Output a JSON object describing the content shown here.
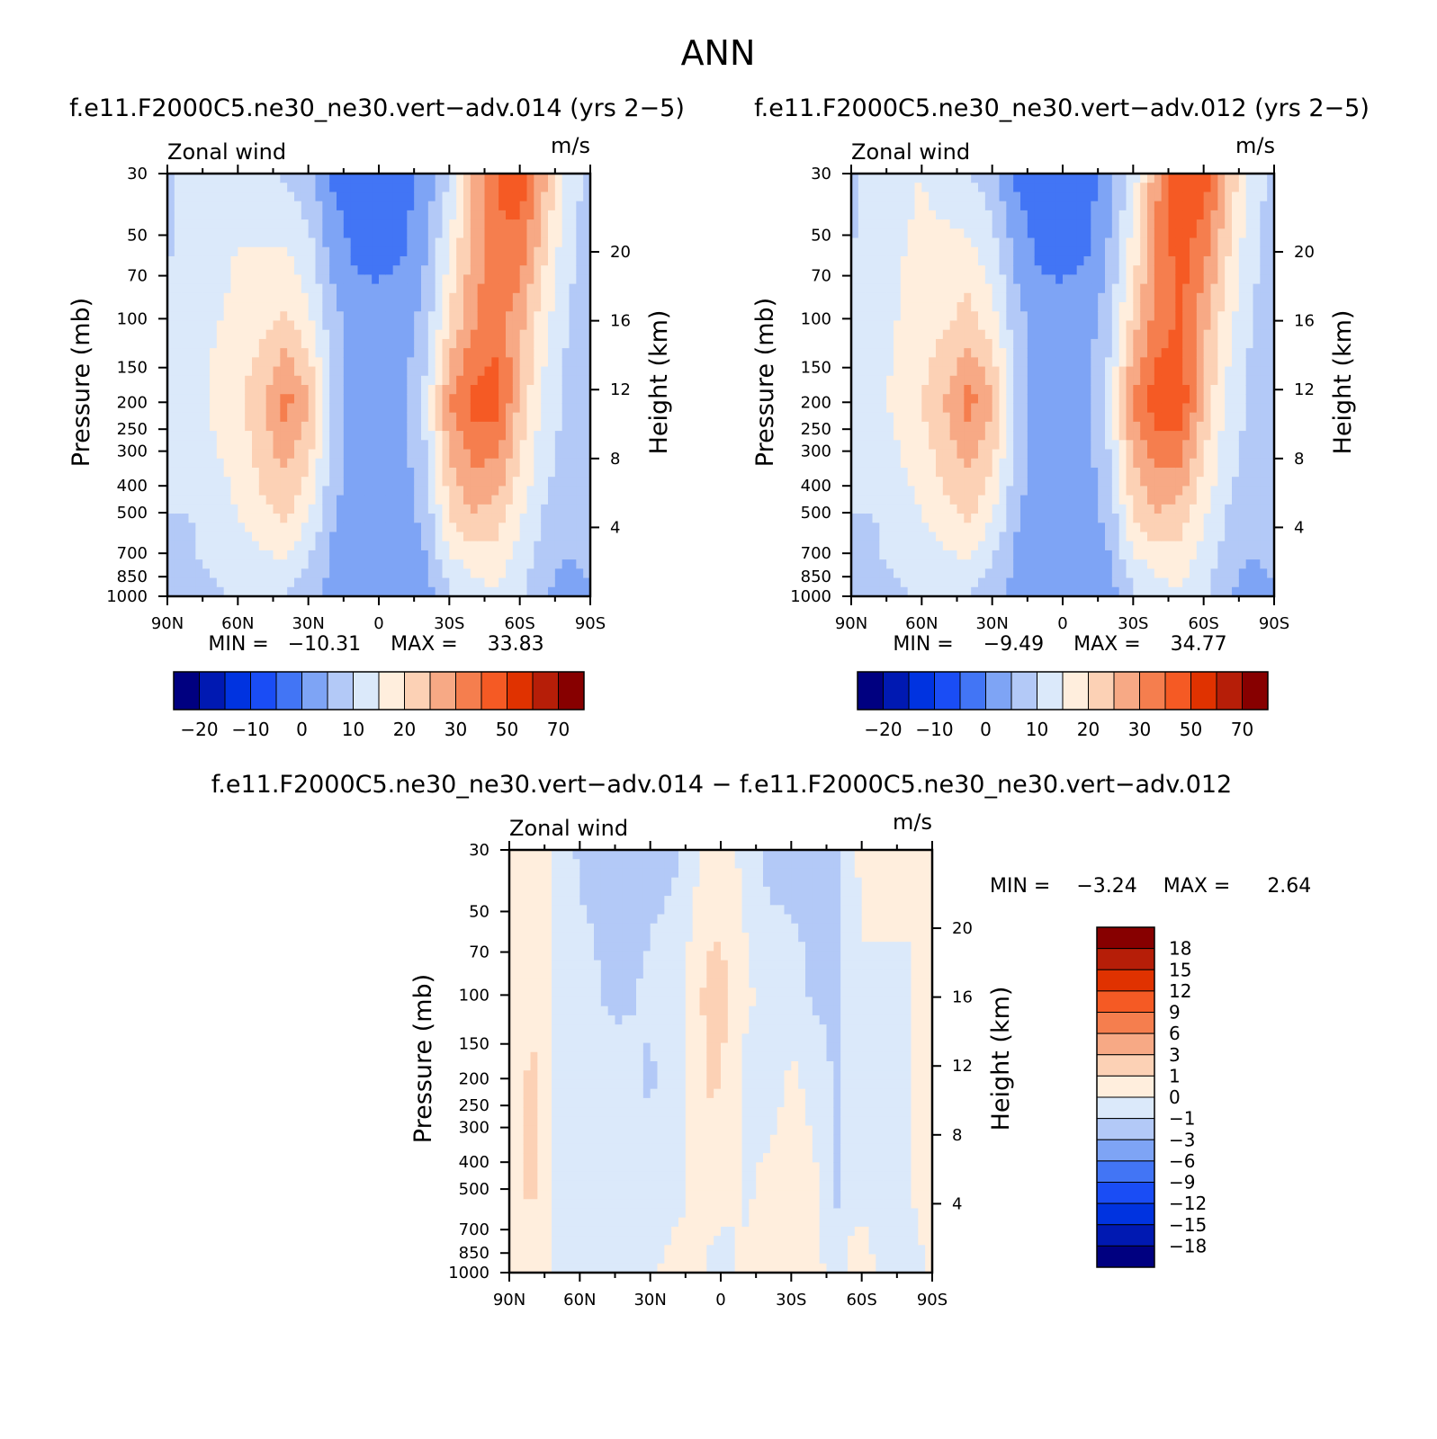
{
  "figure": {
    "title": "ANN"
  },
  "colormaps": {
    "abs": [
      "#000080",
      "#0019b2",
      "#0033e0",
      "#1a4df5",
      "#4275f5",
      "#7ea4f5",
      "#b3c9f7",
      "#dbe9fa",
      "#ffeedd",
      "#fcd1b5",
      "#f7a985",
      "#f57e4e",
      "#f55a24",
      "#e03200",
      "#b61e08",
      "#870000"
    ],
    "diff": [
      "#000080",
      "#0019b2",
      "#0033e0",
      "#1a4df5",
      "#4275f5",
      "#7ea4f5",
      "#b3c9f7",
      "#dbe9fa",
      "#ffeedd",
      "#fcd1b5",
      "#f7a985",
      "#f57e4e",
      "#f55a24",
      "#e03200",
      "#b61e08",
      "#870000"
    ]
  },
  "chart_data": [
    {
      "type": "heatmap",
      "title": "f.e11.F2000C5.ne30_ne30.vert−adv.014 (yrs 2−5)",
      "left_label": "Zonal wind",
      "right_label": "m/s",
      "xlabel": "",
      "ylabel": "Pressure (mb)",
      "y2label": "Height (km)",
      "x_ticks": [
        "90N",
        "60N",
        "30N",
        "0",
        "30S",
        "60S",
        "90S"
      ],
      "y_ticks": [
        "30",
        "50",
        "70",
        "100",
        "150",
        "200",
        "250",
        "300",
        "400",
        "500",
        "700",
        "850",
        "1000"
      ],
      "y2_ticks": [
        "20",
        "16",
        "12",
        "8",
        "4"
      ],
      "min_max": {
        "min_label": "MIN =",
        "min": "−10.31",
        "max_label": "MAX =",
        "max": "33.83"
      },
      "colorbar_labels": [
        "−20",
        "−10",
        "0",
        "10",
        "20",
        "30",
        "50",
        "70"
      ],
      "xlim": [
        90,
        -90
      ],
      "ylim": [
        1000,
        30
      ],
      "scale": "log-pressure",
      "profiles": [
        {
          "lat": 90,
          "values": {
            "30": 4,
            "100": 5,
            "200": 5,
            "500": 5,
            "1000": 4
          }
        },
        {
          "lat": 80,
          "values": {
            "30": 7,
            "100": 8,
            "200": 8,
            "500": 5,
            "1000": 4
          }
        },
        {
          "lat": 60,
          "values": {
            "30": 9,
            "100": 11,
            "200": 14,
            "500": 10,
            "1000": 5
          }
        },
        {
          "lat": 50,
          "values": {
            "30": 7,
            "100": 13,
            "200": 19,
            "500": 14,
            "1000": 5
          }
        },
        {
          "lat": 40,
          "values": {
            "30": 4,
            "100": 16,
            "200": 27,
            "500": 16,
            "1000": 5
          }
        },
        {
          "lat": 30,
          "values": {
            "30": 2,
            "100": 11,
            "200": 21,
            "500": 11,
            "1000": 1
          }
        },
        {
          "lat": 20,
          "values": {
            "30": -6,
            "100": 2,
            "200": 5,
            "500": 1,
            "1000": -2
          }
        },
        {
          "lat": 10,
          "values": {
            "30": -9,
            "100": -3,
            "200": -3,
            "500": -3,
            "1000": -3
          }
        },
        {
          "lat": 0,
          "values": {
            "30": -8,
            "100": -4,
            "200": -4,
            "500": -3,
            "1000": -3
          }
        },
        {
          "lat": -10,
          "values": {
            "30": -8,
            "100": -3,
            "200": -1,
            "500": -3,
            "1000": -3
          }
        },
        {
          "lat": -20,
          "values": {
            "30": -3,
            "100": 2,
            "200": 7,
            "500": 2,
            "1000": -2
          }
        },
        {
          "lat": -30,
          "values": {
            "30": 5,
            "100": 15,
            "200": 25,
            "500": 15,
            "1000": 4
          }
        },
        {
          "lat": -40,
          "values": {
            "30": 20,
            "100": 24,
            "200": 32,
            "500": 20,
            "1000": 7
          }
        },
        {
          "lat": -50,
          "values": {
            "30": 30,
            "100": 28,
            "200": 33,
            "500": 18,
            "1000": 9
          }
        },
        {
          "lat": -60,
          "values": {
            "30": 34,
            "100": 22,
            "200": 19,
            "500": 11,
            "1000": 6
          }
        },
        {
          "lat": -70,
          "values": {
            "30": 22,
            "100": 12,
            "200": 9,
            "500": 5,
            "1000": 0
          }
        },
        {
          "lat": -80,
          "values": {
            "30": 8,
            "100": 5,
            "200": 4,
            "500": 2,
            "1000": -2
          }
        },
        {
          "lat": -90,
          "values": {
            "30": 3,
            "100": 3,
            "200": 3,
            "500": 1,
            "1000": 0
          }
        }
      ]
    },
    {
      "type": "heatmap",
      "title": "f.e11.F2000C5.ne30_ne30.vert−adv.012 (yrs 2−5)",
      "left_label": "Zonal wind",
      "right_label": "m/s",
      "xlabel": "",
      "ylabel": "Pressure (mb)",
      "y2label": "Height (km)",
      "x_ticks": [
        "90N",
        "60N",
        "30N",
        "0",
        "30S",
        "60S",
        "90S"
      ],
      "y_ticks": [
        "30",
        "50",
        "70",
        "100",
        "150",
        "200",
        "250",
        "300",
        "400",
        "500",
        "700",
        "850",
        "1000"
      ],
      "y2_ticks": [
        "20",
        "16",
        "12",
        "8",
        "4"
      ],
      "min_max": {
        "min_label": "MIN =",
        "min": "−9.49",
        "max_label": "MAX =",
        "max": "34.77"
      },
      "colorbar_labels": [
        "−20",
        "−10",
        "0",
        "10",
        "20",
        "30",
        "50",
        "70"
      ],
      "xlim": [
        90,
        -90
      ],
      "ylim": [
        1000,
        30
      ],
      "scale": "log-pressure",
      "profiles": [
        {
          "lat": 90,
          "values": {
            "30": 4,
            "100": 5,
            "200": 5,
            "500": 5,
            "1000": 4
          }
        },
        {
          "lat": 80,
          "values": {
            "30": 8,
            "100": 8,
            "200": 8,
            "500": 5,
            "1000": 4
          }
        },
        {
          "lat": 60,
          "values": {
            "30": 10,
            "100": 12,
            "200": 15,
            "500": 10,
            "1000": 5
          }
        },
        {
          "lat": 50,
          "values": {
            "30": 8,
            "100": 14,
            "200": 20,
            "500": 14,
            "1000": 5
          }
        },
        {
          "lat": 40,
          "values": {
            "30": 5,
            "100": 17,
            "200": 27,
            "500": 16,
            "1000": 5
          }
        },
        {
          "lat": 30,
          "values": {
            "30": 2,
            "100": 12,
            "200": 21,
            "500": 11,
            "1000": 1
          }
        },
        {
          "lat": 20,
          "values": {
            "30": -6,
            "100": 2,
            "200": 5,
            "500": 1,
            "1000": -2
          }
        },
        {
          "lat": 10,
          "values": {
            "30": -9,
            "100": -3,
            "200": -3,
            "500": -3,
            "1000": -3
          }
        },
        {
          "lat": 0,
          "values": {
            "30": -8,
            "100": -4,
            "200": -4,
            "500": -3,
            "1000": -3
          }
        },
        {
          "lat": -10,
          "values": {
            "30": -8,
            "100": -3,
            "200": -1,
            "500": -3,
            "1000": -3
          }
        },
        {
          "lat": -20,
          "values": {
            "30": -2,
            "100": 3,
            "200": 8,
            "500": 2,
            "1000": -2
          }
        },
        {
          "lat": -30,
          "values": {
            "30": 7,
            "100": 17,
            "200": 26,
            "500": 15,
            "1000": 4
          }
        },
        {
          "lat": -40,
          "values": {
            "30": 24,
            "100": 27,
            "200": 33,
            "500": 20,
            "1000": 7
          }
        },
        {
          "lat": -50,
          "values": {
            "30": 34,
            "100": 31,
            "200": 34,
            "500": 18,
            "1000": 9
          }
        },
        {
          "lat": -60,
          "values": {
            "30": 33,
            "100": 22,
            "200": 19,
            "500": 11,
            "1000": 6
          }
        },
        {
          "lat": -70,
          "values": {
            "30": 20,
            "100": 12,
            "200": 9,
            "500": 5,
            "1000": 0
          }
        },
        {
          "lat": -80,
          "values": {
            "30": 8,
            "100": 5,
            "200": 4,
            "500": 2,
            "1000": -2
          }
        },
        {
          "lat": -90,
          "values": {
            "30": 3,
            "100": 3,
            "200": 3,
            "500": 1,
            "1000": 0
          }
        }
      ]
    },
    {
      "type": "heatmap",
      "title": "f.e11.F2000C5.ne30_ne30.vert−adv.014 − f.e11.F2000C5.ne30_ne30.vert−adv.012",
      "left_label": "Zonal wind",
      "right_label": "m/s",
      "xlabel": "",
      "ylabel": "Pressure (mb)",
      "y2label": "Height (km)",
      "x_ticks": [
        "90N",
        "60N",
        "30N",
        "0",
        "30S",
        "60S",
        "90S"
      ],
      "y_ticks": [
        "30",
        "50",
        "70",
        "100",
        "150",
        "200",
        "250",
        "300",
        "400",
        "500",
        "700",
        "850",
        "1000"
      ],
      "y2_ticks": [
        "20",
        "16",
        "12",
        "8",
        "4"
      ],
      "min_max": {
        "min_label": "MIN =",
        "min": "−3.24",
        "max_label": "MAX =",
        "max": "2.64"
      },
      "colorbar_labels": [
        "18",
        "15",
        "12",
        "9",
        "6",
        "3",
        "1",
        "0",
        "−1",
        "−3",
        "−6",
        "−9",
        "−12",
        "−15",
        "−18"
      ],
      "xlim": [
        90,
        -90
      ],
      "ylim": [
        1000,
        30
      ],
      "scale": "log-pressure",
      "profiles": [
        {
          "lat": 90,
          "values": {
            "30": 0.2,
            "100": 0.2,
            "200": 0.3,
            "500": 0.3,
            "1000": 0.3
          }
        },
        {
          "lat": 85,
          "values": {
            "30": 0.3,
            "100": 0.5,
            "200": 0.8,
            "500": 0.9,
            "1000": 0.3
          }
        },
        {
          "lat": 80,
          "values": {
            "30": 0.3,
            "100": 0.5,
            "200": 1.3,
            "500": 1.2,
            "1000": 0.3
          }
        },
        {
          "lat": 75,
          "values": {
            "30": 0.2,
            "100": 0.3,
            "200": 0.5,
            "500": 0.4,
            "1000": 0.2
          }
        },
        {
          "lat": 70,
          "values": {
            "30": -0.2,
            "100": -0.3,
            "200": -0.3,
            "500": -0.3,
            "1000": -0.1
          }
        },
        {
          "lat": 60,
          "values": {
            "30": -1.2,
            "100": -0.5,
            "200": -0.5,
            "500": -0.5,
            "1000": -0.3
          }
        },
        {
          "lat": 45,
          "values": {
            "30": -1.5,
            "100": -1.3,
            "200": -0.4,
            "500": -0.5,
            "1000": -0.3
          }
        },
        {
          "lat": 30,
          "values": {
            "30": -1.3,
            "100": -0.8,
            "200": -1.2,
            "500": -0.4,
            "1000": -0.2
          }
        },
        {
          "lat": 20,
          "values": {
            "30": -1.2,
            "100": -0.5,
            "200": -0.3,
            "500": -0.3,
            "1000": 0.3
          }
        },
        {
          "lat": 10,
          "values": {
            "30": -0.2,
            "100": 0.8,
            "200": 0.5,
            "500": 0.2,
            "1000": 0.1
          }
        },
        {
          "lat": 5,
          "values": {
            "30": 0.2,
            "100": 1.3,
            "200": 1.2,
            "500": 0.3,
            "1000": -0.1
          }
        },
        {
          "lat": 0,
          "values": {
            "30": 0.3,
            "100": 1.5,
            "200": 1.0,
            "500": 0.3,
            "1000": -0.3
          }
        },
        {
          "lat": -5,
          "values": {
            "30": 0.2,
            "100": 0.6,
            "200": 0.4,
            "500": 0.2,
            "1000": -0.2
          }
        },
        {
          "lat": -10,
          "values": {
            "30": -0.3,
            "100": 0.3,
            "200": -0.3,
            "500": -0.2,
            "1000": 0.2
          }
        },
        {
          "lat": -20,
          "values": {
            "30": -1.3,
            "100": -0.4,
            "200": -0.6,
            "500": 0.3,
            "1000": 0.4
          }
        },
        {
          "lat": -30,
          "values": {
            "30": -1.4,
            "100": -0.5,
            "200": 0.2,
            "500": 0.5,
            "1000": 0.3
          }
        },
        {
          "lat": -40,
          "values": {
            "30": -1.2,
            "100": -1.2,
            "200": -0.3,
            "500": 0.2,
            "1000": 0.2
          }
        },
        {
          "lat": -50,
          "values": {
            "30": -1.5,
            "100": -1.2,
            "200": -1.3,
            "500": -1.3,
            "1000": -0.3
          }
        },
        {
          "lat": -55,
          "values": {
            "30": -0.5,
            "100": -0.5,
            "200": -0.5,
            "500": -0.5,
            "1000": 0.3
          }
        },
        {
          "lat": -60,
          "values": {
            "30": 0.3,
            "100": -0.2,
            "200": -0.2,
            "500": -0.2,
            "1000": 0.3
          }
        },
        {
          "lat": -70,
          "values": {
            "30": 0.5,
            "100": -0.3,
            "200": -0.3,
            "500": -0.3,
            "1000": -0.2
          }
        },
        {
          "lat": -80,
          "values": {
            "30": 0.4,
            "100": -0.2,
            "200": -0.2,
            "500": -0.2,
            "1000": -0.4
          }
        },
        {
          "lat": -85,
          "values": {
            "30": 0.3,
            "100": 0.3,
            "200": 0.3,
            "500": 0.4,
            "1000": -0.3
          }
        },
        {
          "lat": -90,
          "values": {
            "30": 0.2,
            "100": 0.5,
            "200": 0.5,
            "500": 0.5,
            "1000": 0.3
          }
        }
      ]
    }
  ]
}
